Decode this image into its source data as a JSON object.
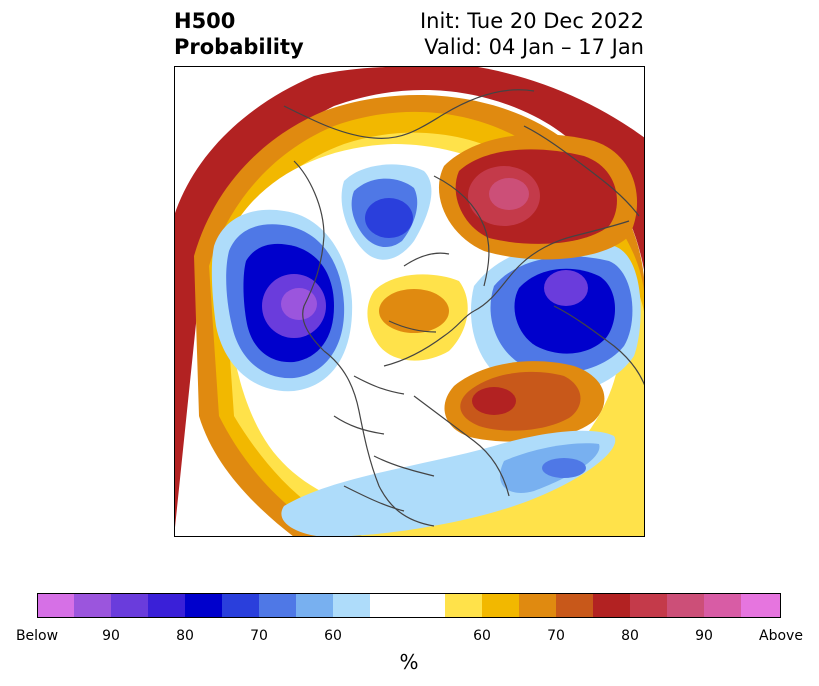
{
  "title": {
    "left_line1": "H500",
    "left_line2": "Probability",
    "right_line1": "Init: Tue 20 Dec 2022",
    "right_line2": "Valid: 04 Jan – 17 Jan"
  },
  "colorbar": {
    "unit": "%",
    "tick_labels": [
      "Below",
      "90",
      "80",
      "70",
      "60",
      "60",
      "70",
      "80",
      "90",
      "Above"
    ],
    "colors": [
      "#d670e6",
      "#9b55dd",
      "#6a3cdc",
      "#3a20d8",
      "#0000cc",
      "#2a3fdc",
      "#4f78e6",
      "#78b0f0",
      "#aedcfa",
      "#ffffff",
      "#ffe24a",
      "#f2b800",
      "#e08a10",
      "#c8581a",
      "#b22222",
      "#c43a4a",
      "#cc4f78",
      "#d85ca5",
      "#e675df"
    ]
  },
  "map": {
    "type": "polar stereographic probability anomaly",
    "colors": {
      "red": "#b22222",
      "orange": "#e08a10",
      "gold": "#f2b800",
      "yellow": "#ffe24a",
      "lightblue": "#aedcfa",
      "blue": "#4f78e6",
      "deepblue": "#0000cc",
      "purple": "#6a3cdc",
      "pinkred": "#c43a4a",
      "coast": "#444444"
    }
  }
}
